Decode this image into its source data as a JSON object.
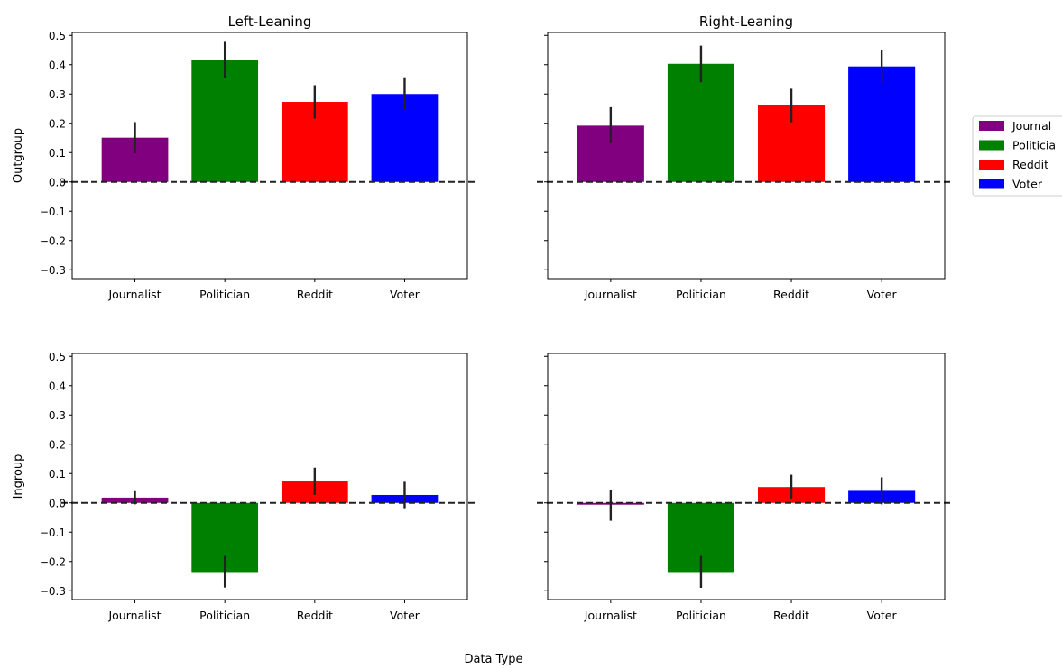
{
  "chart_data": {
    "type": "bar",
    "suptitle_xlabel": "Data Type",
    "categories": [
      "Journalist",
      "Politician",
      "Reddit",
      "Voter"
    ],
    "colors": {
      "Journalist": "#800080",
      "Politician": "#008000",
      "Reddit": "#ff0000",
      "Voter": "#0000ff"
    },
    "ylim": [
      -0.33,
      0.51
    ],
    "yticks": [
      "0.5",
      "0.4",
      "0.3",
      "0.2",
      "0.1",
      "0.0",
      "−0.1",
      "−0.2",
      "−0.3"
    ],
    "reference_line": {
      "y": 0.0,
      "style": "dashed"
    },
    "legend": {
      "placement": "right",
      "entries": [
        "Journal",
        "Politicia",
        "Reddit",
        "Voter"
      ]
    },
    "panels": [
      {
        "title": "Left-Leaning",
        "ylabel": "Outgroup",
        "values": [
          0.151,
          0.417,
          0.273,
          0.3
        ],
        "error_low": [
          0.098,
          0.356,
          0.216,
          0.245
        ],
        "error_high": [
          0.204,
          0.478,
          0.33,
          0.357
        ]
      },
      {
        "title": "Right-Leaning",
        "ylabel": "",
        "values": [
          0.192,
          0.403,
          0.261,
          0.394
        ],
        "error_low": [
          0.132,
          0.34,
          0.203,
          0.338
        ],
        "error_high": [
          0.255,
          0.465,
          0.318,
          0.45
        ]
      },
      {
        "title": "",
        "ylabel": "Ingroup",
        "values": [
          0.018,
          -0.236,
          0.073,
          0.027
        ],
        "error_low": [
          -0.005,
          -0.289,
          0.027,
          -0.018
        ],
        "error_high": [
          0.04,
          -0.181,
          0.12,
          0.072
        ]
      },
      {
        "title": "",
        "ylabel": "",
        "values": [
          -0.006,
          -0.236,
          0.054,
          0.041
        ],
        "error_low": [
          -0.061,
          -0.29,
          0.012,
          -0.005
        ],
        "error_high": [
          0.045,
          -0.181,
          0.096,
          0.087
        ]
      }
    ]
  }
}
